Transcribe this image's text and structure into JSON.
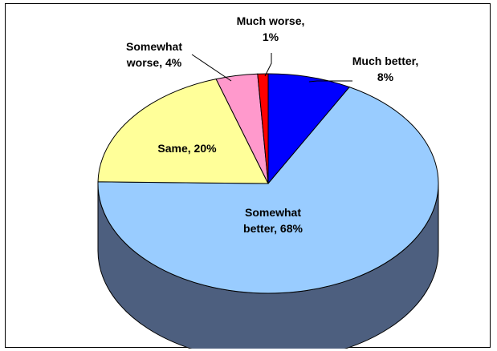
{
  "chart_data": {
    "type": "pie",
    "title": "",
    "three_d": true,
    "legend": "none",
    "start_angle_deg": 0,
    "direction": "clockwise",
    "slices": [
      {
        "name": "Much better",
        "value": 8,
        "color": "#0000ff",
        "label": [
          "Much better,",
          "8%"
        ]
      },
      {
        "name": "Somewhat better",
        "value": 68,
        "color": "#99ccff",
        "side_color": "#4d5f7f",
        "label": [
          "Somewhat",
          "better, 68%"
        ]
      },
      {
        "name": "Same",
        "value": 20,
        "color": "#ffff99",
        "label": [
          "Same, 20%"
        ]
      },
      {
        "name": "Somewhat worse",
        "value": 4,
        "color": "#ff99cc",
        "label": [
          "Somewhat",
          "worse, 4%"
        ]
      },
      {
        "name": "Much worse",
        "value": 1,
        "color": "#ff0000",
        "label": [
          "Much worse,",
          "1%"
        ]
      }
    ]
  }
}
